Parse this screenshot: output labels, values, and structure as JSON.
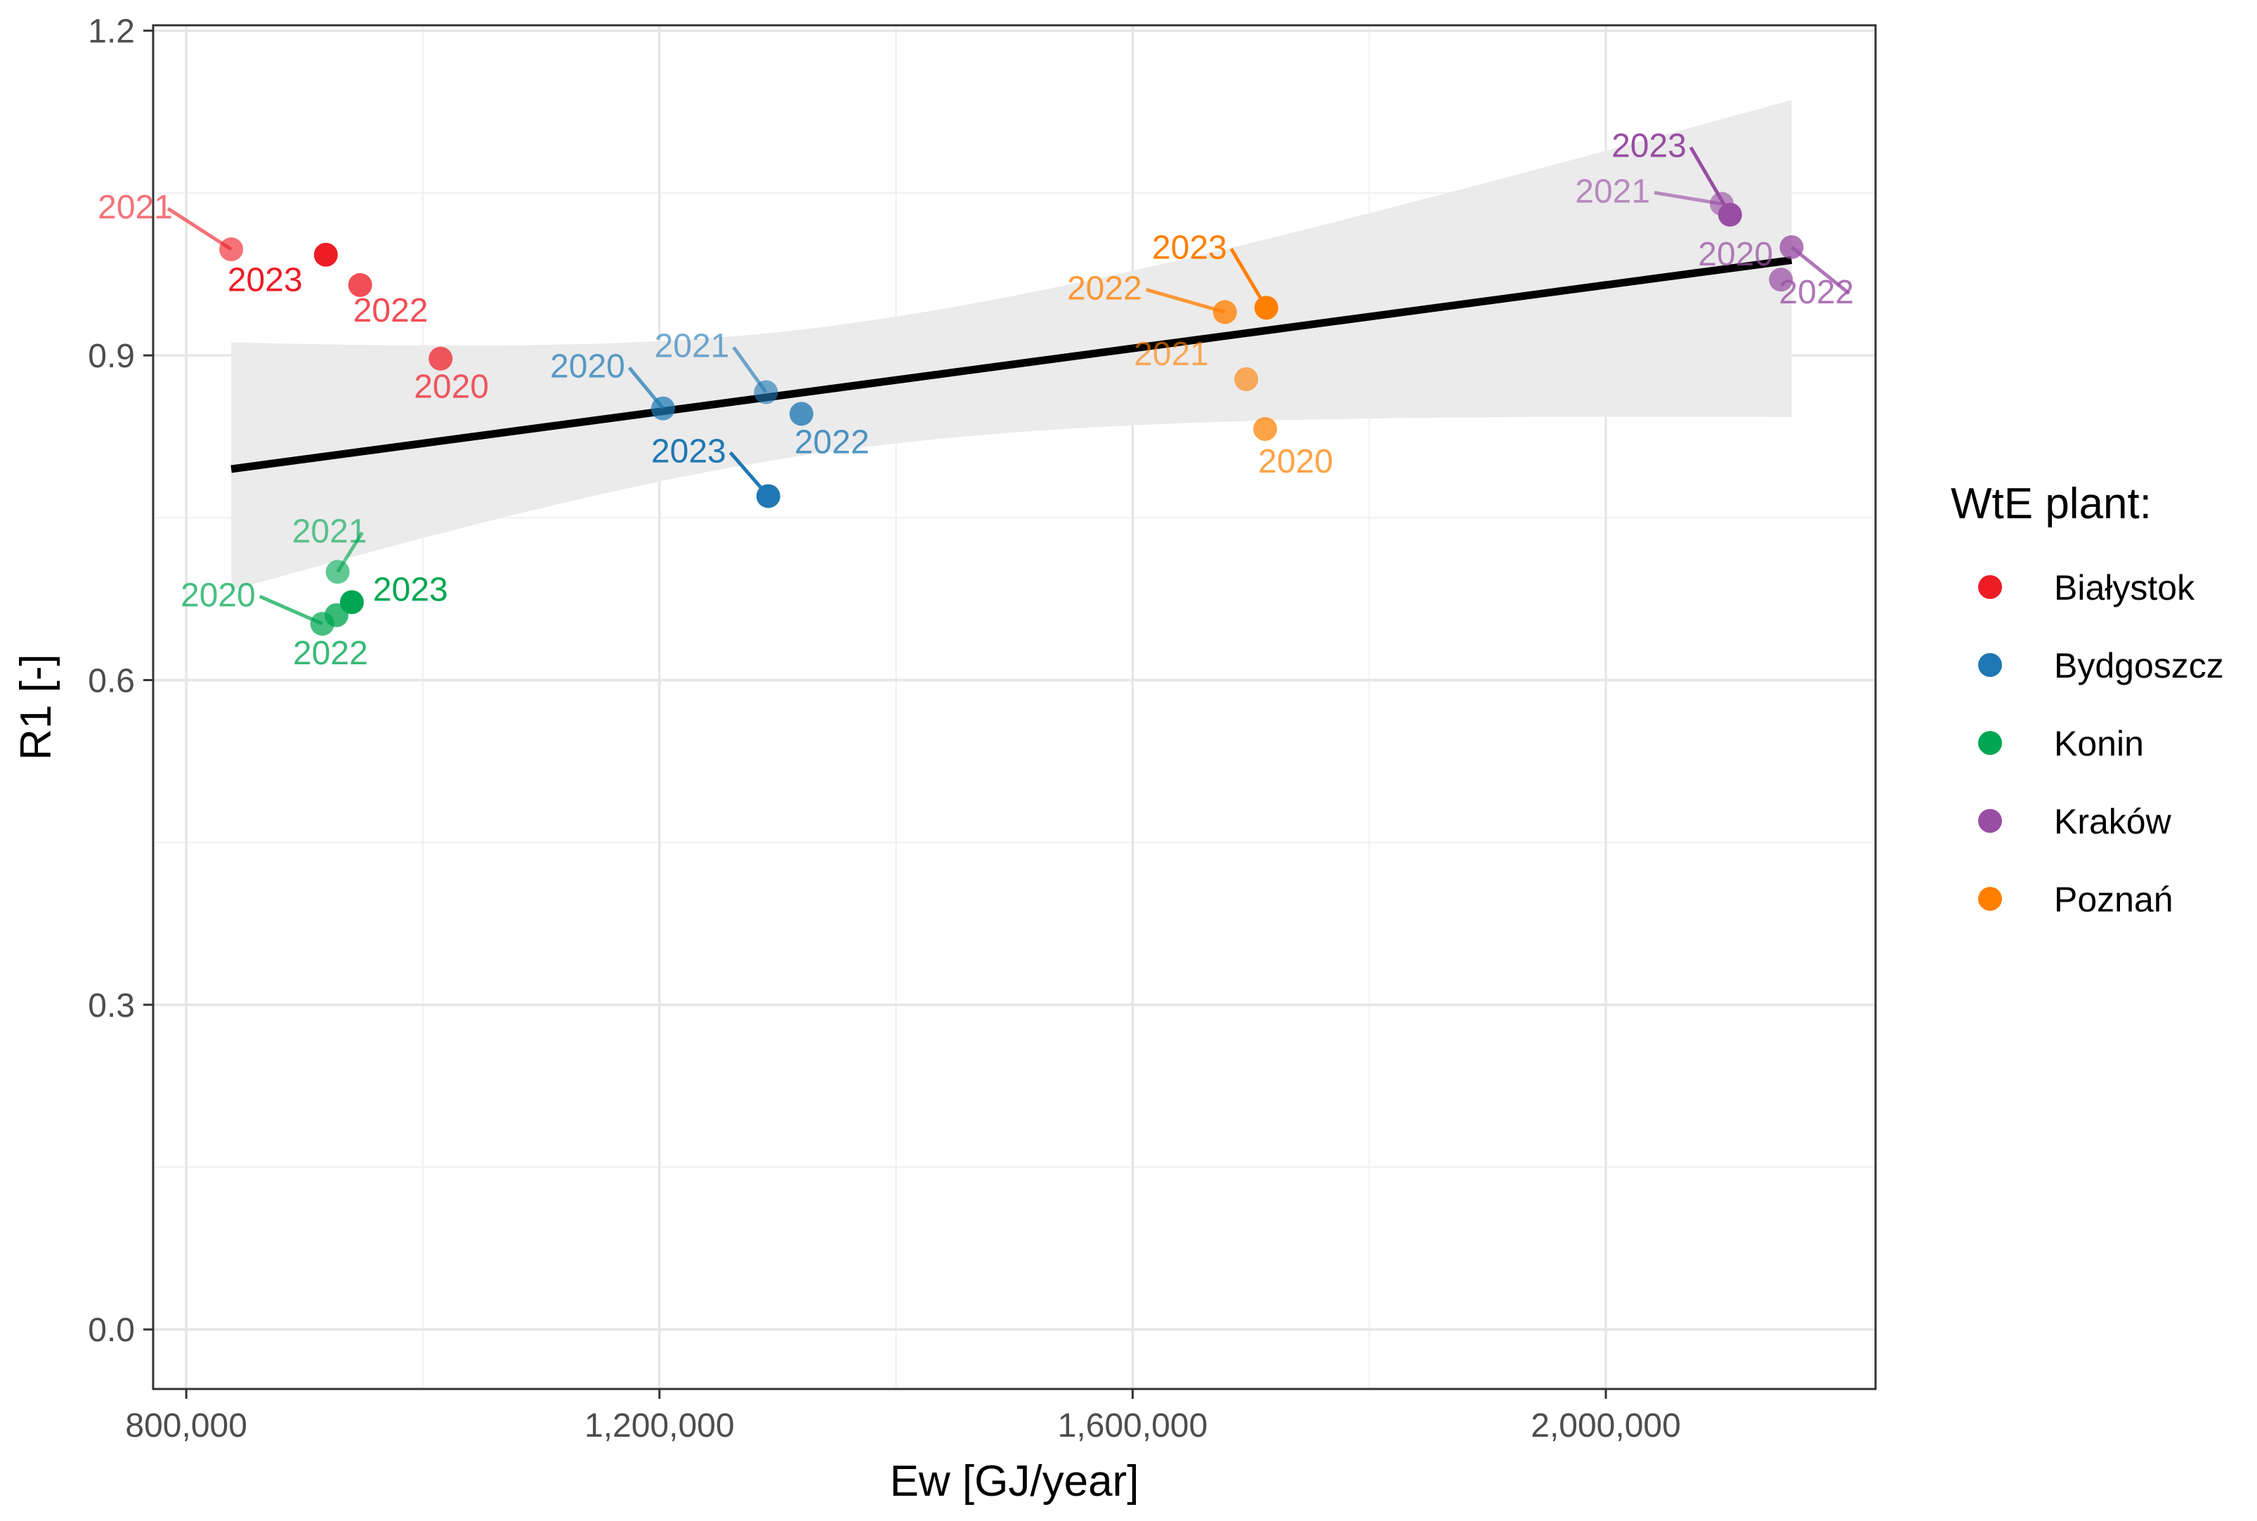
{
  "chart_data": {
    "type": "scatter",
    "xlabel": "Ew [GJ/year]",
    "ylabel": "R1 [-]",
    "xlim": [
      772000,
      2228000
    ],
    "ylim": [
      -0.055,
      1.205
    ],
    "x_ticks": [
      800000,
      1200000,
      1600000,
      2000000
    ],
    "x_tick_labels": [
      "800,000",
      "1,200,000",
      "1,600,000",
      "2,000,000"
    ],
    "y_ticks": [
      0.0,
      0.3,
      0.6,
      0.9,
      1.2
    ],
    "y_tick_labels": [
      "0.0",
      "0.3",
      "0.6",
      "0.9",
      "1.2"
    ],
    "grid": true,
    "legend": {
      "title": "WtE plant:",
      "position": "right",
      "entries": [
        "Białystok",
        "Bydgoszcz",
        "Konin",
        "Kraków",
        "Poznań"
      ]
    },
    "colors": {
      "Białystok": "#ee1c25",
      "Bydgoszcz": "#1f78b4",
      "Konin": "#00a651",
      "Kraków": "#984ea3",
      "Poznań": "#ff7f00"
    },
    "series": [
      {
        "name": "Białystok",
        "points": [
          {
            "year": "2020",
            "x": 1015000,
            "y": 0.897
          },
          {
            "year": "2021",
            "x": 838000,
            "y": 0.998
          },
          {
            "year": "2022",
            "x": 947000,
            "y": 0.965
          },
          {
            "year": "2023",
            "x": 918000,
            "y": 0.993
          }
        ]
      },
      {
        "name": "Bydgoszcz",
        "points": [
          {
            "year": "2020",
            "x": 1203000,
            "y": 0.851
          },
          {
            "year": "2021",
            "x": 1290000,
            "y": 0.866
          },
          {
            "year": "2022",
            "x": 1320000,
            "y": 0.846
          },
          {
            "year": "2023",
            "x": 1292000,
            "y": 0.77
          }
        ]
      },
      {
        "name": "Konin",
        "points": [
          {
            "year": "2020",
            "x": 915000,
            "y": 0.652
          },
          {
            "year": "2021",
            "x": 928000,
            "y": 0.7
          },
          {
            "year": "2022",
            "x": 927000,
            "y": 0.66
          },
          {
            "year": "2023",
            "x": 940000,
            "y": 0.672
          }
        ]
      },
      {
        "name": "Kraków",
        "points": [
          {
            "year": "2020",
            "x": 2148000,
            "y": 0.97
          },
          {
            "year": "2021",
            "x": 2098000,
            "y": 1.04
          },
          {
            "year": "2022",
            "x": 2157000,
            "y": 1.0
          },
          {
            "year": "2023",
            "x": 2105000,
            "y": 1.03
          }
        ]
      },
      {
        "name": "Poznań",
        "points": [
          {
            "year": "2020",
            "x": 1712000,
            "y": 0.832
          },
          {
            "year": "2021",
            "x": 1696000,
            "y": 0.878
          },
          {
            "year": "2022",
            "x": 1678000,
            "y": 0.94
          },
          {
            "year": "2023",
            "x": 1713000,
            "y": 0.944
          }
        ]
      }
    ],
    "trend": {
      "type": "linear",
      "x": [
        838000,
        2157000
      ],
      "y": [
        0.795,
        0.988
      ],
      "ci_lower": [
        0.683,
        0.843
      ],
      "ci_upper": [
        0.912,
        1.136
      ]
    }
  }
}
